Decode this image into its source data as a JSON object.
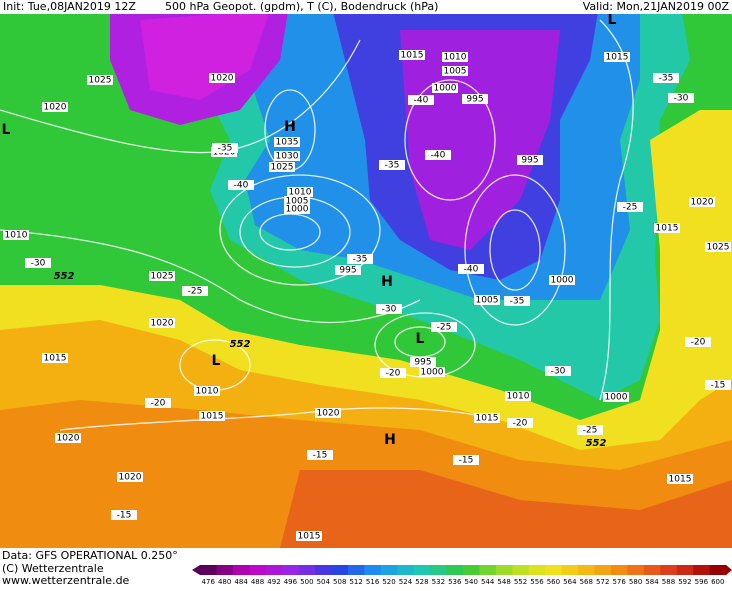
{
  "header": {
    "init": "Init: Tue,08JAN2019 12Z",
    "product": "500 hPa Geopot. (gpdm), T (C), Bodendruck (hPa)",
    "valid": "Valid: Mon,21JAN2019 00Z"
  },
  "map": {
    "pressure_labels": [
      1025,
      1020,
      1020,
      1015,
      1010,
      1005,
      1000,
      995,
      1035,
      1030,
      1025,
      1020,
      1010,
      1005,
      1000,
      995,
      995,
      1015,
      1020,
      1015,
      1025,
      1010,
      1025,
      1020,
      1015,
      1000,
      1005,
      995,
      1000,
      1010,
      1015,
      1020,
      1015,
      1010,
      1000,
      1020,
      1020,
      1015,
      1015
    ],
    "temperature_labels": [
      -35,
      -30,
      -40,
      -35,
      -40,
      -35,
      -40,
      -35,
      -40,
      -35,
      -30,
      -25,
      -25,
      -30,
      -25,
      -20,
      -15,
      -30,
      -25,
      -20,
      -20,
      -20,
      -15,
      -15,
      -15
    ],
    "centers": [
      "H",
      "L",
      "L",
      "H",
      "L",
      "L",
      "H"
    ],
    "height_labels": [
      552,
      552,
      552
    ]
  },
  "footer": {
    "data": "Data: GFS OPERATIONAL 0.250°",
    "copyright": "(C) Wetterzentrale",
    "url": "www.wetterzentrale.de"
  },
  "colorbar": {
    "ticks": [
      476,
      480,
      484,
      488,
      492,
      496,
      500,
      504,
      508,
      512,
      516,
      520,
      524,
      528,
      532,
      536,
      540,
      544,
      548,
      552,
      556,
      560,
      564,
      568,
      572,
      576,
      580,
      584,
      588,
      592,
      596,
      600
    ]
  }
}
